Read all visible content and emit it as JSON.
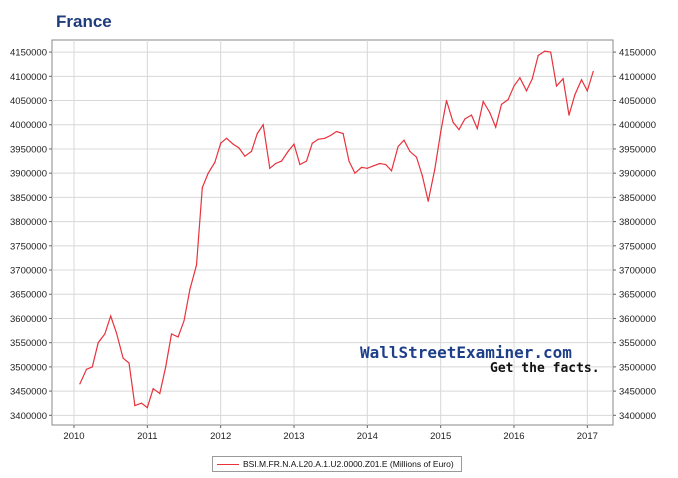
{
  "chart_data": {
    "type": "line",
    "title": "France",
    "xlabel": "",
    "ylabel": "",
    "xlim": [
      2009.7,
      2017.35
    ],
    "ylim": [
      3380000,
      4175000
    ],
    "x_ticks": [
      2010,
      2011,
      2012,
      2013,
      2014,
      2015,
      2016,
      2017
    ],
    "y_ticks": [
      3400000,
      3450000,
      3500000,
      3550000,
      3600000,
      3650000,
      3700000,
      3750000,
      3800000,
      3850000,
      3900000,
      3950000,
      4000000,
      4050000,
      4100000,
      4150000
    ],
    "grid": true,
    "legend_position": "bottom",
    "series": [
      {
        "name": "BSI.M.FR.N.A.L20.A.1.U2.0000.Z01.E (Millions of Euro)",
        "color": "#e8323c",
        "x": [
          2010.08,
          2010.17,
          2010.25,
          2010.33,
          2010.42,
          2010.5,
          2010.58,
          2010.67,
          2010.75,
          2010.83,
          2010.92,
          2011.0,
          2011.08,
          2011.17,
          2011.25,
          2011.33,
          2011.42,
          2011.5,
          2011.58,
          2011.67,
          2011.75,
          2011.83,
          2011.92,
          2012.0,
          2012.08,
          2012.17,
          2012.25,
          2012.33,
          2012.42,
          2012.5,
          2012.58,
          2012.67,
          2012.75,
          2012.83,
          2012.92,
          2013.0,
          2013.08,
          2013.17,
          2013.25,
          2013.33,
          2013.42,
          2013.5,
          2013.58,
          2013.67,
          2013.75,
          2013.83,
          2013.92,
          2014.0,
          2014.08,
          2014.17,
          2014.25,
          2014.33,
          2014.42,
          2014.5,
          2014.58,
          2014.67,
          2014.75,
          2014.83,
          2014.92,
          2015.0,
          2015.08,
          2015.17,
          2015.25,
          2015.33,
          2015.42,
          2015.5,
          2015.58,
          2015.67,
          2015.75,
          2015.83,
          2015.92,
          2016.0,
          2016.08,
          2016.17,
          2016.25,
          2016.33,
          2016.42,
          2016.5,
          2016.58,
          2016.67,
          2016.75,
          2016.83,
          2016.92,
          2017.0,
          2017.08
        ],
        "values": [
          3465000,
          3495000,
          3500000,
          3550000,
          3568000,
          3605000,
          3570000,
          3518000,
          3508000,
          3420000,
          3425000,
          3416000,
          3455000,
          3445000,
          3500000,
          3568000,
          3562000,
          3595000,
          3660000,
          3710000,
          3870000,
          3900000,
          3922000,
          3962000,
          3972000,
          3960000,
          3952000,
          3935000,
          3945000,
          3982000,
          4000000,
          3910000,
          3920000,
          3925000,
          3945000,
          3960000,
          3918000,
          3925000,
          3962000,
          3970000,
          3972000,
          3978000,
          3986000,
          3982000,
          3925000,
          3900000,
          3912000,
          3910000,
          3915000,
          3920000,
          3918000,
          3905000,
          3955000,
          3968000,
          3945000,
          3933000,
          3895000,
          3842000,
          3908000,
          3985000,
          4050000,
          4005000,
          3990000,
          4012000,
          4020000,
          3992000,
          4048000,
          4025000,
          3995000,
          4042000,
          4052000,
          4080000,
          4097000,
          4070000,
          4095000,
          4143000,
          4152000,
          4150000,
          4080000,
          4095000,
          4020000,
          4062000,
          4093000,
          4070000,
          4110000
        ]
      }
    ]
  },
  "watermark": {
    "line1": "WallStreetExaminer.com",
    "line2": "Get the facts."
  }
}
